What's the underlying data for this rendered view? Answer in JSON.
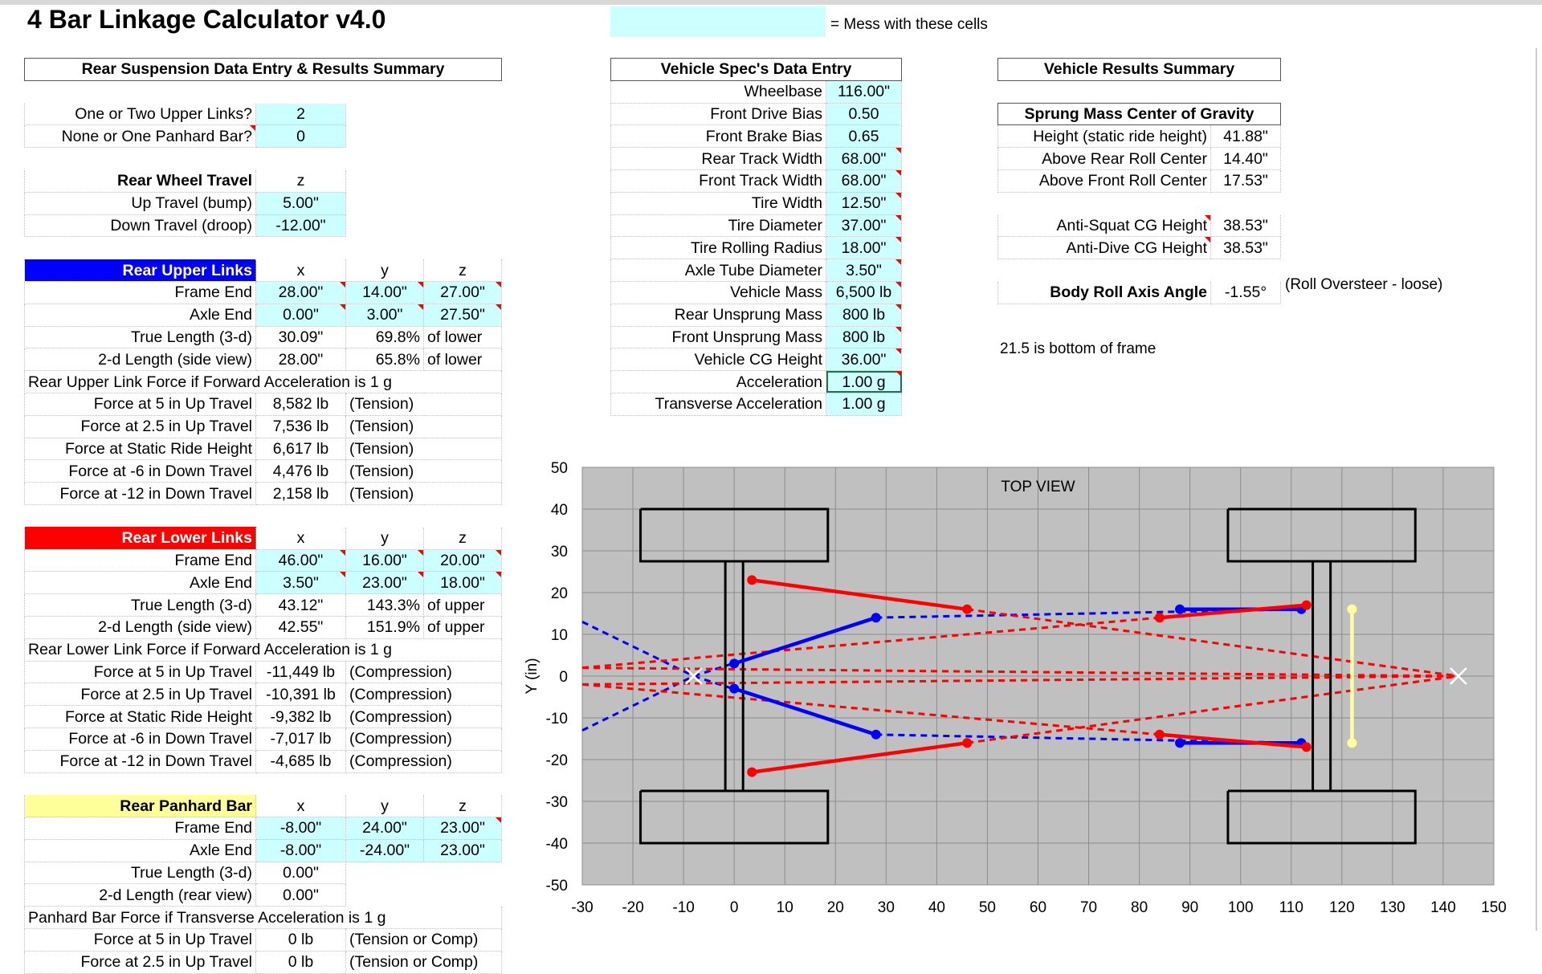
{
  "title": "4 Bar Linkage Calculator v4.0",
  "legend": {
    "text": "= Mess with these cells",
    "color": "#ccffff"
  },
  "rear": {
    "header": "Rear Suspension Data Entry & Results Summary",
    "upper_links_label": "One or Two Upper Links?",
    "upper_links": "2",
    "panhard_label": "None or One Panhard Bar?",
    "panhard": "0",
    "travel_header": "Rear Wheel Travel",
    "z_col": "z",
    "up_label": "Up Travel (bump)",
    "up": "5.00\"",
    "down_label": "Down Travel (droop)",
    "down": "-12.00\"",
    "upper": {
      "title": "Rear Upper Links",
      "color": "#0000ff",
      "cols": [
        "x",
        "y",
        "z"
      ],
      "frame_label": "Frame End",
      "frame": [
        "28.00\"",
        "14.00\"",
        "27.00\""
      ],
      "axle_label": "Axle End",
      "axle": [
        "0.00\"",
        "3.00\"",
        "27.50\""
      ],
      "true_label": "True Length (3-d)",
      "true_len": "30.09\"",
      "true_pct": "69.8%",
      "true_of": "of lower",
      "side_label": "2-d Length (side view)",
      "side_len": "28.00\"",
      "side_pct": "65.8%",
      "side_of": "of lower",
      "force_header": "Rear Upper Link Force if Forward Acceleration is 1 g",
      "forces": [
        {
          "label": "Force at 5 in Up Travel",
          "value": "8,582 lb",
          "type": "(Tension)"
        },
        {
          "label": "Force at 2.5 in Up Travel",
          "value": "7,536 lb",
          "type": "(Tension)"
        },
        {
          "label": "Force at Static Ride Height",
          "value": "6,617 lb",
          "type": "(Tension)"
        },
        {
          "label": "Force at -6 in Down Travel",
          "value": "4,476 lb",
          "type": "(Tension)"
        },
        {
          "label": "Force at -12 in Down Travel",
          "value": "2,158 lb",
          "type": "(Tension)"
        }
      ]
    },
    "lower": {
      "title": "Rear Lower Links",
      "color": "#ff0000",
      "cols": [
        "x",
        "y",
        "z"
      ],
      "frame_label": "Frame End",
      "frame": [
        "46.00\"",
        "16.00\"",
        "20.00\""
      ],
      "axle_label": "Axle End",
      "axle": [
        "3.50\"",
        "23.00\"",
        "18.00\""
      ],
      "true_label": "True Length (3-d)",
      "true_len": "43.12\"",
      "true_pct": "143.3%",
      "true_of": "of upper",
      "side_label": "2-d Length (side view)",
      "side_len": "42.55\"",
      "side_pct": "151.9%",
      "side_of": "of upper",
      "force_header": "Rear Lower Link Force if Forward Acceleration is 1 g",
      "forces": [
        {
          "label": "Force at 5 in Up Travel",
          "value": "-11,449 lb",
          "type": "(Compression)"
        },
        {
          "label": "Force at 2.5 in Up Travel",
          "value": "-10,391 lb",
          "type": "(Compression)"
        },
        {
          "label": "Force at Static Ride Height",
          "value": "-9,382 lb",
          "type": "(Compression)"
        },
        {
          "label": "Force at -6 in Down Travel",
          "value": "-7,017 lb",
          "type": "(Compression)"
        },
        {
          "label": "Force at -12 in Down Travel",
          "value": "-4,685 lb",
          "type": "(Compression)"
        }
      ]
    },
    "panhard_bar": {
      "title": "Rear Panhard Bar",
      "color": "#ffff99",
      "cols": [
        "x",
        "y",
        "z"
      ],
      "frame_label": "Frame End",
      "frame": [
        "-8.00\"",
        "24.00\"",
        "23.00\""
      ],
      "axle_label": "Axle End",
      "axle": [
        "-8.00\"",
        "-24.00\"",
        "23.00\""
      ],
      "true_label": "True Length (3-d)",
      "true_len": "0.00\"",
      "rear_label": "2-d Length (rear view)",
      "rear_len": "0.00\"",
      "force_header": "Panhard Bar Force if Transverse Acceleration is 1 g",
      "forces": [
        {
          "label": "Force at 5 in Up Travel",
          "value": "0 lb",
          "type": "(Tension or Comp)"
        },
        {
          "label": "Force at 2.5 in Up Travel",
          "value": "0 lb",
          "type": "(Tension or Comp)"
        }
      ]
    }
  },
  "vehicle": {
    "header": "Vehicle Spec's Data Entry",
    "rows": [
      {
        "label": "Wheelbase",
        "value": "116.00\""
      },
      {
        "label": "Front Drive Bias",
        "value": "0.50"
      },
      {
        "label": "Front Brake Bias",
        "value": "0.65"
      },
      {
        "label": "Rear Track Width",
        "value": "68.00\""
      },
      {
        "label": "Front Track Width",
        "value": "68.00\""
      },
      {
        "label": "Tire Width",
        "value": "12.50\""
      },
      {
        "label": "Tire Diameter",
        "value": "37.00\""
      },
      {
        "label": "Tire Rolling Radius",
        "value": "18.00\""
      },
      {
        "label": "Axle Tube Diameter",
        "value": "3.50\""
      },
      {
        "label": "Vehicle Mass",
        "value": "6,500 lb"
      },
      {
        "label": "Rear Unsprung Mass",
        "value": "800 lb"
      },
      {
        "label": "Front Unsprung Mass",
        "value": "800 lb"
      },
      {
        "label": "Vehicle CG Height",
        "value": "36.00\""
      },
      {
        "label": "Acceleration",
        "value": "1.00 g"
      },
      {
        "label": "Transverse Acceleration",
        "value": "1.00 g"
      }
    ]
  },
  "results": {
    "header": "Vehicle Results Summary",
    "cg_header": "Sprung Mass Center of Gravity",
    "height_label": "Height (static ride height)",
    "height": "41.88\"",
    "above_rear_label": "Above Rear Roll Center",
    "above_rear": "14.40\"",
    "above_front_label": "Above Front Roll Center",
    "above_front": "17.53\"",
    "antisquat_label": "Anti-Squat CG Height",
    "antisquat": "38.53\"",
    "antidive_label": "Anti-Dive CG Height",
    "antidive": "38.53\"",
    "roll_label": "Body Roll Axis Angle",
    "roll": "-1.55°",
    "roll_note": "(Roll Oversteer - loose)",
    "frame_note": "21.5 is bottom of frame"
  },
  "chart_data": {
    "type": "scatter",
    "title": "TOP VIEW",
    "xlabel": "",
    "ylabel": "Y (in)",
    "xlim": [
      -30,
      150
    ],
    "ylim": [
      -50,
      50
    ],
    "xticks": [
      -30,
      -20,
      -10,
      0,
      10,
      20,
      30,
      40,
      50,
      60,
      70,
      80,
      90,
      100,
      110,
      120,
      130,
      140,
      150
    ],
    "yticks": [
      50,
      40,
      30,
      20,
      10,
      0,
      -10,
      -20,
      -30,
      -40,
      -50
    ],
    "grid": true,
    "series": [
      {
        "name": "Rear Tire Left",
        "kind": "box",
        "color": "#000000",
        "points": [
          [
            -18.5,
            40
          ],
          [
            18.5,
            40
          ],
          [
            18.5,
            27.5
          ],
          [
            -18.5,
            27.5
          ],
          [
            -18.5,
            40
          ]
        ]
      },
      {
        "name": "Rear Tire Right",
        "kind": "box",
        "color": "#000000",
        "points": [
          [
            -18.5,
            -27.5
          ],
          [
            18.5,
            -27.5
          ],
          [
            18.5,
            -40
          ],
          [
            -18.5,
            -40
          ],
          [
            -18.5,
            -27.5
          ]
        ]
      },
      {
        "name": "Front Tire Left",
        "kind": "box",
        "color": "#000000",
        "points": [
          [
            97.5,
            40
          ],
          [
            134.5,
            40
          ],
          [
            134.5,
            27.5
          ],
          [
            97.5,
            27.5
          ],
          [
            97.5,
            40
          ]
        ]
      },
      {
        "name": "Front Tire Right",
        "kind": "box",
        "color": "#000000",
        "points": [
          [
            97.5,
            -27.5
          ],
          [
            134.5,
            -27.5
          ],
          [
            134.5,
            -40
          ],
          [
            97.5,
            -40
          ],
          [
            97.5,
            -27.5
          ]
        ]
      },
      {
        "name": "Rear Axle",
        "kind": "box",
        "color": "#000000",
        "points": [
          [
            -1.75,
            27.5
          ],
          [
            1.75,
            27.5
          ],
          [
            1.75,
            -27.5
          ],
          [
            -1.75,
            -27.5
          ],
          [
            -1.75,
            27.5
          ]
        ]
      },
      {
        "name": "Front Axle",
        "kind": "box",
        "color": "#000000",
        "points": [
          [
            114.25,
            27.5
          ],
          [
            117.75,
            27.5
          ],
          [
            117.75,
            -27.5
          ],
          [
            114.25,
            -27.5
          ],
          [
            114.25,
            27.5
          ]
        ]
      },
      {
        "name": "Rear Upper Link L",
        "kind": "line",
        "color": "#0000ff",
        "points": [
          [
            0,
            3
          ],
          [
            28,
            14
          ]
        ]
      },
      {
        "name": "Rear Upper Link R",
        "kind": "line",
        "color": "#0000ff",
        "points": [
          [
            0,
            -3
          ],
          [
            28,
            -14
          ]
        ]
      },
      {
        "name": "Rear Lower Link L",
        "kind": "line",
        "color": "#ff0000",
        "points": [
          [
            3.5,
            23
          ],
          [
            46,
            16
          ]
        ]
      },
      {
        "name": "Rear Lower Link R",
        "kind": "line",
        "color": "#ff0000",
        "points": [
          [
            3.5,
            -23
          ],
          [
            46,
            -16
          ]
        ]
      },
      {
        "name": "Front Upper Link L",
        "kind": "line",
        "color": "#0000ff",
        "points": [
          [
            88,
            16
          ],
          [
            112,
            16
          ]
        ]
      },
      {
        "name": "Front Upper Link R",
        "kind": "line",
        "color": "#0000ff",
        "points": [
          [
            88,
            -16
          ],
          [
            112,
            -16
          ]
        ]
      },
      {
        "name": "Front Lower Link L",
        "kind": "line",
        "color": "#ff0000",
        "points": [
          [
            84,
            14
          ],
          [
            113,
            17
          ]
        ]
      },
      {
        "name": "Front Lower Link R",
        "kind": "line",
        "color": "#ff0000",
        "points": [
          [
            84,
            -14
          ],
          [
            113,
            -17
          ]
        ]
      },
      {
        "name": "Front Panhard",
        "kind": "line",
        "color": "#ffff99",
        "points": [
          [
            122,
            16
          ],
          [
            122,
            -16
          ]
        ]
      },
      {
        "name": "Rear Upper Projection L",
        "kind": "dashed",
        "color": "#0000ff",
        "points": [
          [
            -30,
            13
          ],
          [
            -8,
            0
          ]
        ]
      },
      {
        "name": "Rear Upper Projection R",
        "kind": "dashed",
        "color": "#0000ff",
        "points": [
          [
            -30,
            -13
          ],
          [
            -8,
            0
          ]
        ]
      },
      {
        "name": "Upper Link Projection L",
        "kind": "dashed",
        "color": "#0000ff",
        "points": [
          [
            -8,
            0
          ],
          [
            28,
            14
          ],
          [
            112,
            16
          ]
        ]
      },
      {
        "name": "Upper Link Projection R",
        "kind": "dashed",
        "color": "#0000ff",
        "points": [
          [
            -8,
            0
          ],
          [
            28,
            -14
          ],
          [
            112,
            -16
          ]
        ]
      },
      {
        "name": "Lower Link Projection L",
        "kind": "dashed",
        "color": "#ff0000",
        "points": [
          [
            -30,
            2
          ],
          [
            143,
            0
          ]
        ]
      },
      {
        "name": "Lower Link Projection R",
        "kind": "dashed",
        "color": "#ff0000",
        "points": [
          [
            -30,
            -2
          ],
          [
            143,
            0
          ]
        ]
      },
      {
        "name": "Rear Lower Projection L",
        "kind": "dashed",
        "color": "#ff0000",
        "points": [
          [
            46,
            16
          ],
          [
            143,
            0
          ]
        ]
      },
      {
        "name": "Rear Lower Projection R",
        "kind": "dashed",
        "color": "#ff0000",
        "points": [
          [
            46,
            -16
          ],
          [
            143,
            0
          ]
        ]
      },
      {
        "name": "Front Lower Projection L",
        "kind": "dashed",
        "color": "#ff0000",
        "points": [
          [
            -30,
            2
          ],
          [
            84,
            14
          ]
        ]
      },
      {
        "name": "Front Lower Projection R",
        "kind": "dashed",
        "color": "#ff0000",
        "points": [
          [
            -30,
            -2
          ],
          [
            84,
            -14
          ]
        ]
      }
    ],
    "instant_centers": [
      [
        -8,
        0
      ],
      [
        143,
        0
      ]
    ]
  }
}
